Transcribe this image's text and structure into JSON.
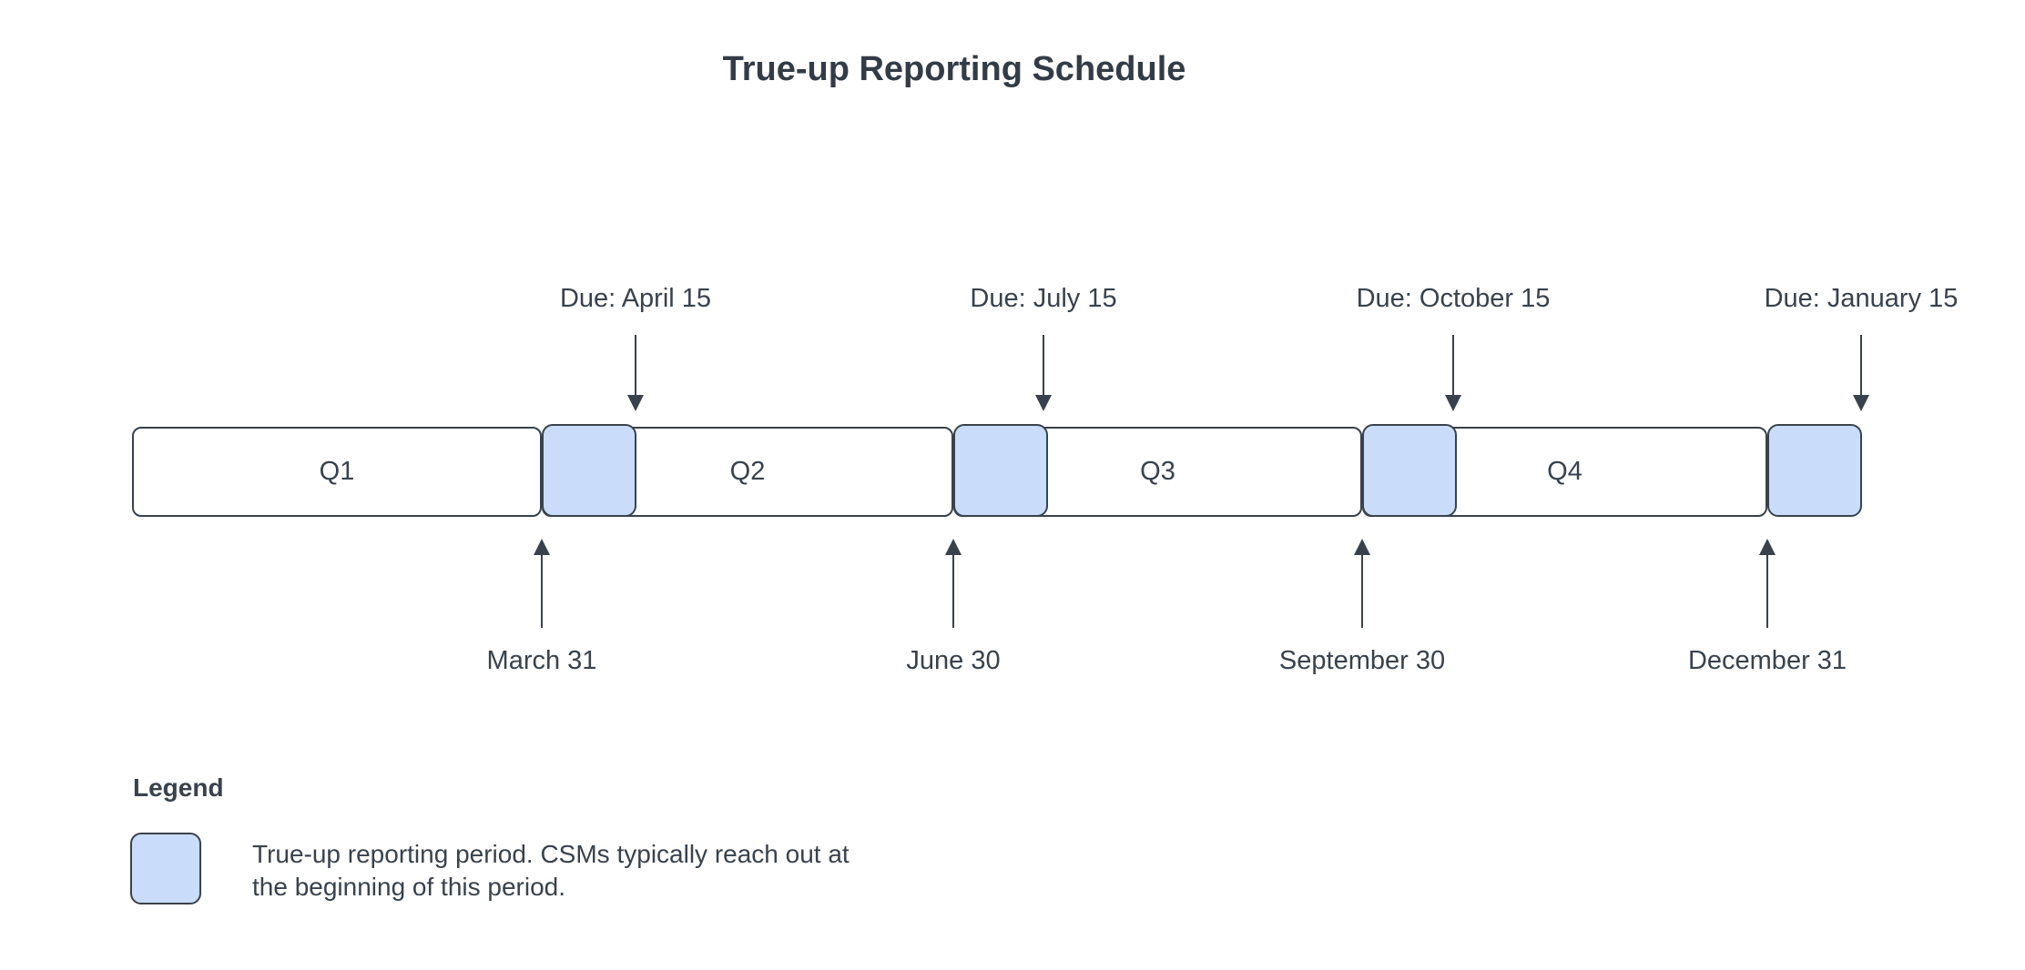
{
  "title": "True-up Reporting Schedule",
  "colors": {
    "highlight_blue": "#c9ddfb",
    "ink": "#39424c",
    "background": "#ffffff"
  },
  "timeline": {
    "quarters": [
      {
        "label": "Q1",
        "end_date": "March 31",
        "report_due": "Due: April 15"
      },
      {
        "label": "Q2",
        "end_date": "June 30",
        "report_due": "Due: July 15"
      },
      {
        "label": "Q3",
        "end_date": "September 30",
        "report_due": "Due: October 15"
      },
      {
        "label": "Q4",
        "end_date": "December 31",
        "report_due": "Due: January 15"
      }
    ]
  },
  "legend": {
    "title": "Legend",
    "description_line1": "True-up reporting period. CSMs typically reach out at",
    "description_line2": "the beginning of this period."
  }
}
